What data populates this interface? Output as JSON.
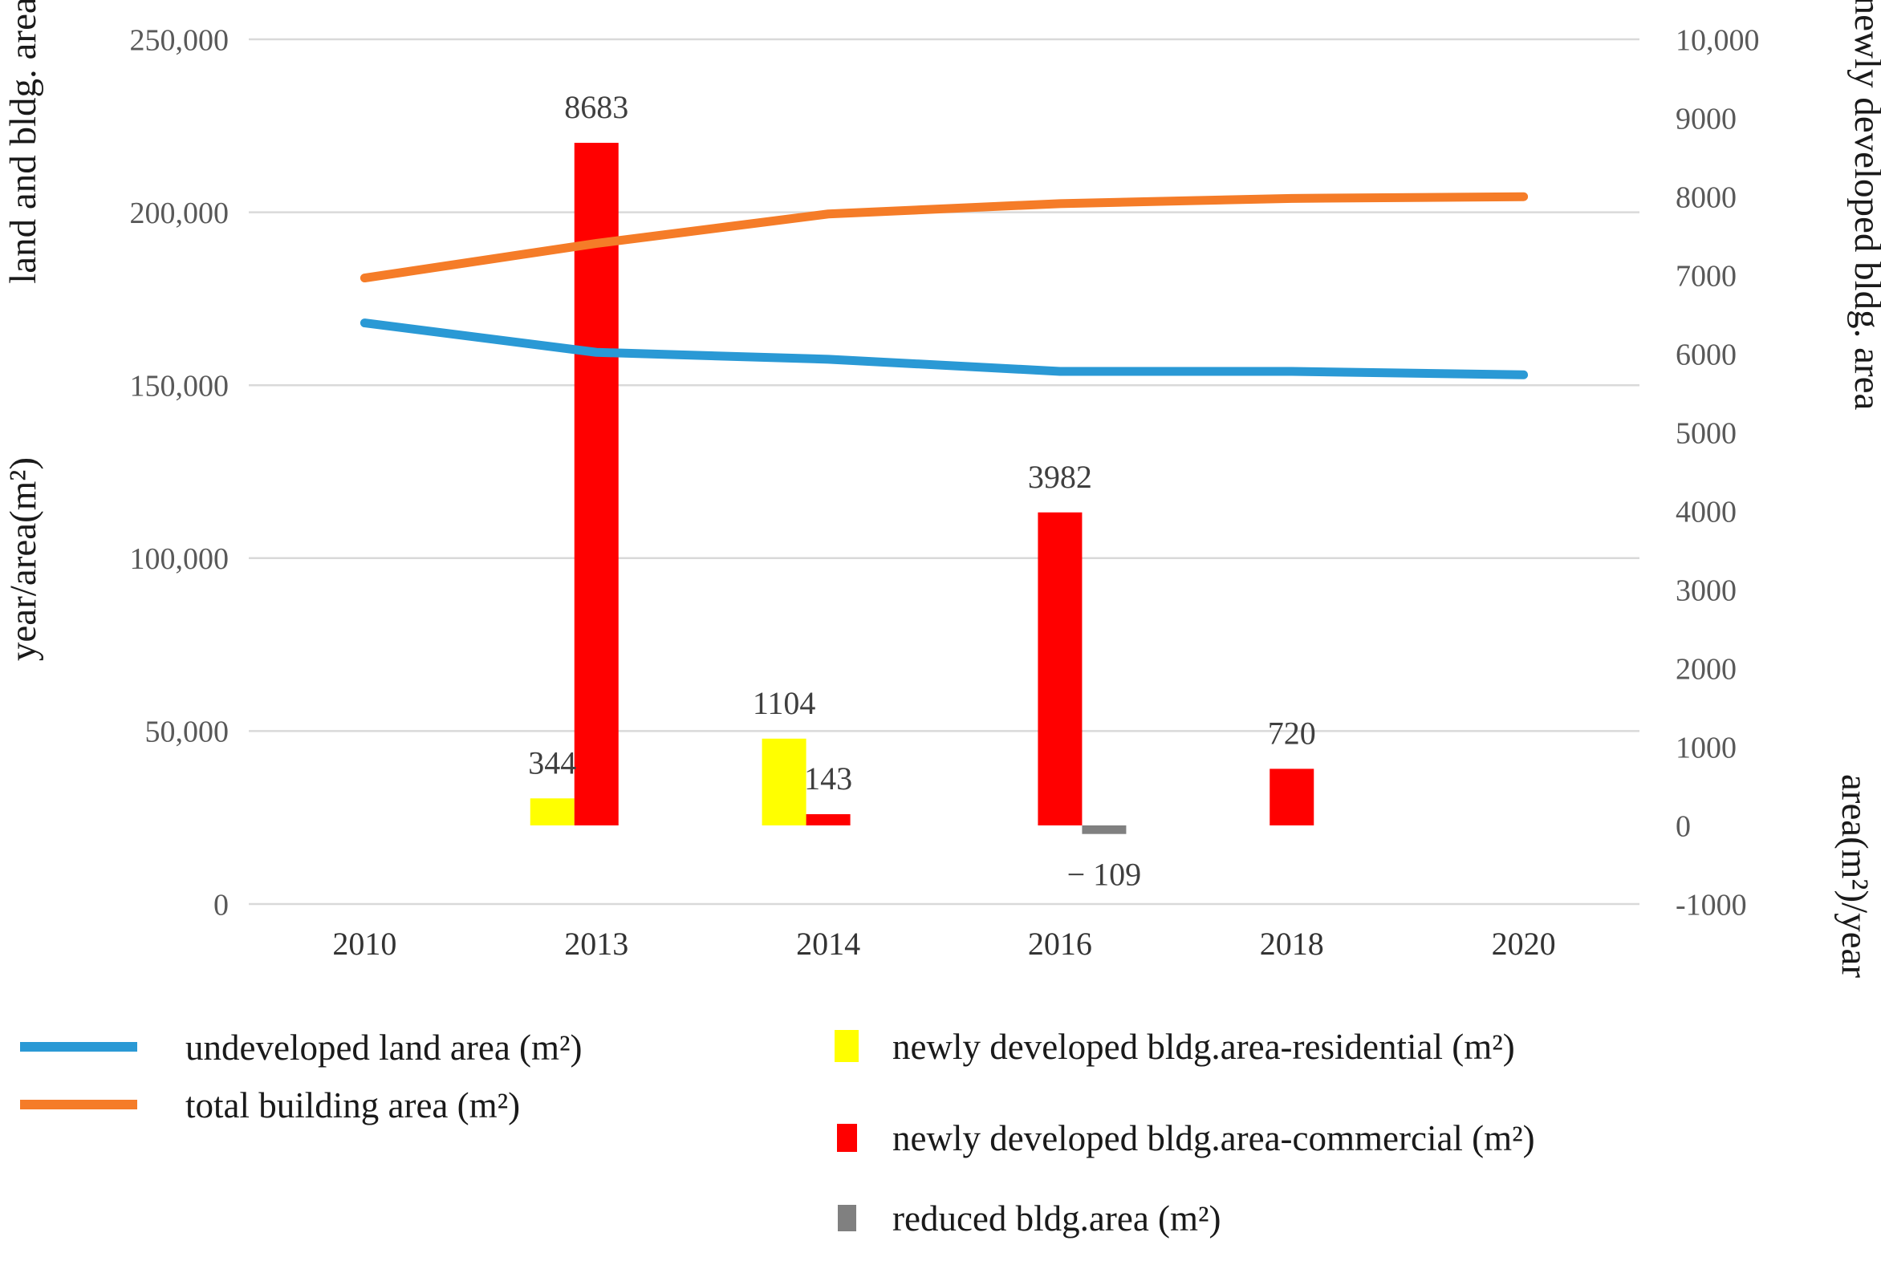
{
  "chart_data": {
    "type": "combo-bar-line-dual-axis",
    "categories": [
      "2010",
      "2013",
      "2014",
      "2016",
      "2018",
      "2020"
    ],
    "left_axis": {
      "title": "land and bldg. area",
      "title_lower": "year/area(m²)",
      "ticks": [
        "250,000",
        "200,000",
        "150,000",
        "100,000",
        "50,000",
        "0"
      ],
      "min": 0,
      "max": 250000,
      "grid": true
    },
    "right_axis": {
      "title": "newly developed bldg. area",
      "title_lower": "area(m²)/year",
      "ticks": [
        "10,000",
        "9000",
        "8000",
        "7000",
        "6000",
        "5000",
        "4000",
        "3000",
        "2000",
        "1000",
        "0",
        "-1000"
      ],
      "min": -1000,
      "max": 10000
    },
    "series": [
      {
        "key": "undeveloped",
        "name": "undeveloped land area (m²)",
        "type": "line",
        "axis": "left",
        "color": "#2A99D5",
        "values": [
          168000,
          159500,
          157500,
          154000,
          154000,
          153000
        ]
      },
      {
        "key": "total-building",
        "name": "total building area (m²)",
        "type": "line",
        "axis": "left",
        "color": "#F57C28",
        "values": [
          181000,
          191000,
          199500,
          202500,
          204000,
          204500
        ]
      },
      {
        "key": "residential",
        "name": "newly developed bldg.area-residential (m²)",
        "type": "bar",
        "axis": "right",
        "color": "#FFFF00",
        "values": [
          null,
          344,
          1104,
          null,
          null,
          null
        ],
        "labels": [
          "",
          "344",
          "1104",
          "",
          "",
          ""
        ]
      },
      {
        "key": "commercial",
        "name": "newly developed bldg.area-commercial (m²)",
        "type": "bar",
        "axis": "right",
        "color": "#FF0000",
        "values": [
          null,
          8683,
          143,
          3982,
          720,
          null
        ],
        "labels": [
          "",
          "8683",
          "143",
          "3982",
          "720",
          ""
        ]
      },
      {
        "key": "reduced",
        "name": "reduced bldg.area (m²)",
        "type": "bar",
        "axis": "right",
        "color": "#808080",
        "values": [
          null,
          null,
          null,
          -109,
          null,
          null
        ],
        "labels": [
          "",
          "",
          "",
          "− 109",
          "",
          ""
        ]
      }
    ],
    "legend": {
      "line_items": [
        {
          "label": "undeveloped land area (m²)",
          "color": "#2A99D5"
        },
        {
          "label": "total building area (m²)",
          "color": "#F57C28"
        }
      ],
      "bar_items": [
        {
          "label": "newly developed bldg.area-residential (m²)",
          "color": "#FFFF00"
        },
        {
          "label": "newly developed bldg.area-commercial (m²)",
          "color": "#FF0000"
        },
        {
          "label": "reduced bldg.area (m²)",
          "color": "#808080"
        }
      ],
      "position": "bottom"
    },
    "colors": {
      "gridline": "#D9D9D9",
      "background": "#FFFFFF",
      "tick_text": "#595959",
      "data_label_text": "#3F3F3F"
    }
  }
}
